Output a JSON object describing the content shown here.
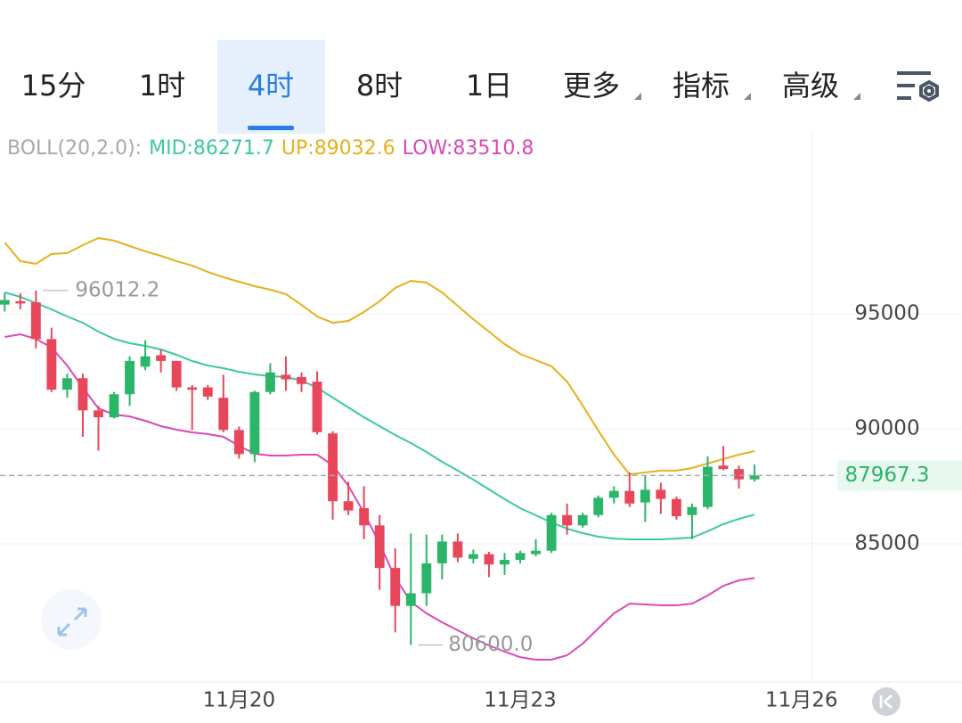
{
  "tabs": [
    {
      "label": "15分",
      "selected": false
    },
    {
      "label": "1时",
      "selected": false
    },
    {
      "label": "4时",
      "selected": true
    },
    {
      "label": "8时",
      "selected": false
    },
    {
      "label": "1日",
      "selected": false
    },
    {
      "label": "更多",
      "selected": false
    },
    {
      "label": "指标",
      "selected": false
    },
    {
      "label": "高级",
      "selected": false
    }
  ],
  "chart_data": {
    "type": "candlestick",
    "indicator": "BOLL(20,2.0):",
    "up_color": "#2bb568",
    "down_color": "#e8475b",
    "open": [
      95400,
      95550,
      95500,
      93900,
      91700,
      92200,
      90800,
      90500,
      91500,
      92700,
      93200,
      92950,
      91800,
      91800,
      91350,
      89950,
      88900,
      91600,
      92350,
      92250,
      92050,
      89800,
      86850,
      86550,
      85800,
      83950,
      82300,
      82850,
      84150,
      85100,
      84350,
      84550,
      84100,
      84300,
      84550,
      84700,
      86250,
      85800,
      86250,
      87000,
      87300,
      86800,
      87350,
      86950,
      86250,
      86600,
      88400,
      88250,
      87800
    ],
    "high": [
      95900,
      95900,
      96012.2,
      94400,
      92400,
      92400,
      91000,
      91600,
      93150,
      93850,
      93450,
      92950,
      91900,
      91900,
      92350,
      90100,
      91650,
      92850,
      93150,
      92450,
      92500,
      89900,
      87700,
      87500,
      86250,
      84800,
      85450,
      85400,
      85400,
      85450,
      84750,
      84650,
      84600,
      84700,
      85200,
      86350,
      86750,
      86350,
      87100,
      87500,
      88100,
      87950,
      87650,
      87050,
      86750,
      88800,
      89250,
      88400,
      88450
    ],
    "low": [
      95100,
      95200,
      93500,
      91600,
      91350,
      89650,
      89050,
      90450,
      91000,
      92550,
      92450,
      91650,
      89950,
      91250,
      89850,
      88700,
      88550,
      91500,
      91650,
      91600,
      89750,
      86050,
      86250,
      85200,
      83000,
      81150,
      80600,
      82300,
      83450,
      84200,
      84150,
      83550,
      83650,
      84150,
      84450,
      84600,
      85400,
      85700,
      86150,
      86750,
      86600,
      85950,
      86300,
      86050,
      85200,
      86500,
      88200,
      87400,
      87700
    ],
    "close": [
      95600,
      95450,
      93900,
      91700,
      92200,
      90800,
      90500,
      91500,
      92950,
      93150,
      92950,
      91800,
      91700,
      91400,
      89950,
      88900,
      91600,
      92450,
      92150,
      91950,
      89850,
      86850,
      86450,
      85800,
      83950,
      82300,
      82850,
      84150,
      85100,
      84400,
      84550,
      84100,
      84300,
      84600,
      84700,
      86250,
      85800,
      86250,
      87000,
      87300,
      86750,
      87350,
      86950,
      86200,
      86600,
      88350,
      88250,
      87800,
      87967.3
    ],
    "series": [
      {
        "name": "MID",
        "legend_label": "MID:86271.7",
        "color": "#3cc9a0",
        "values": [
          95930,
          95735,
          95465,
          95195,
          94885,
          94610,
          94225,
          93915,
          93720,
          93605,
          93450,
          93215,
          92945,
          92750,
          92635,
          92480,
          92365,
          92285,
          92250,
          92095,
          91785,
          91355,
          90930,
          90505,
          90115,
          89730,
          89380,
          88990,
          88565,
          88180,
          87790,
          87365,
          86940,
          86550,
          86240,
          85930,
          85660,
          85465,
          85310,
          85230,
          85195,
          85195,
          85195,
          85230,
          85270,
          85545,
          85855,
          86085,
          86271.7
        ]
      },
      {
        "name": "UP",
        "legend_label": "UP:89032.6",
        "color": "#e6b01c",
        "values": [
          98100,
          97290,
          97170,
          97600,
          97640,
          97985,
          98295,
          98180,
          97945,
          97715,
          97520,
          97290,
          97095,
          96820,
          96590,
          96395,
          96200,
          96045,
          95855,
          95390,
          94885,
          94610,
          94690,
          95080,
          95545,
          96125,
          96435,
          96355,
          95930,
          95350,
          94765,
          94225,
          93680,
          93255,
          92985,
          92715,
          92055,
          91010,
          89920,
          88875,
          88020,
          88100,
          88180,
          88180,
          88295,
          88490,
          88685,
          88875,
          89032.6
        ]
      },
      {
        "name": "LOW",
        "legend_label": "LOW:83510.8",
        "color": "#d94ab6",
        "values": [
          93990,
          94110,
          93915,
          93525,
          92750,
          91785,
          90890,
          90620,
          90540,
          90350,
          90115,
          89960,
          89845,
          89770,
          89650,
          89265,
          88915,
          88835,
          88835,
          88875,
          88875,
          88410,
          87520,
          86355,
          84995,
          83525,
          82480,
          81975,
          81590,
          81240,
          80890,
          80580,
          80310,
          80075,
          79960,
          79960,
          80155,
          80660,
          81320,
          81975,
          82400,
          82365,
          82325,
          82325,
          82400,
          82750,
          83175,
          83410,
          83510.8
        ]
      }
    ],
    "current_price": 87967.3,
    "high_marker": 96012.2,
    "low_marker": {
      "value": 80600,
      "label": "80600.0"
    },
    "xlim": [
      -0.3,
      51.7
    ],
    "xticks": [
      {
        "value": 15,
        "label": "11月20"
      },
      {
        "value": 33,
        "label": "11月23"
      },
      {
        "value": 51,
        "label": "11月26"
      }
    ],
    "ylim": [
      78992,
      102829
    ],
    "yticks": [
      85000,
      90000,
      95000
    ],
    "grid": true
  }
}
